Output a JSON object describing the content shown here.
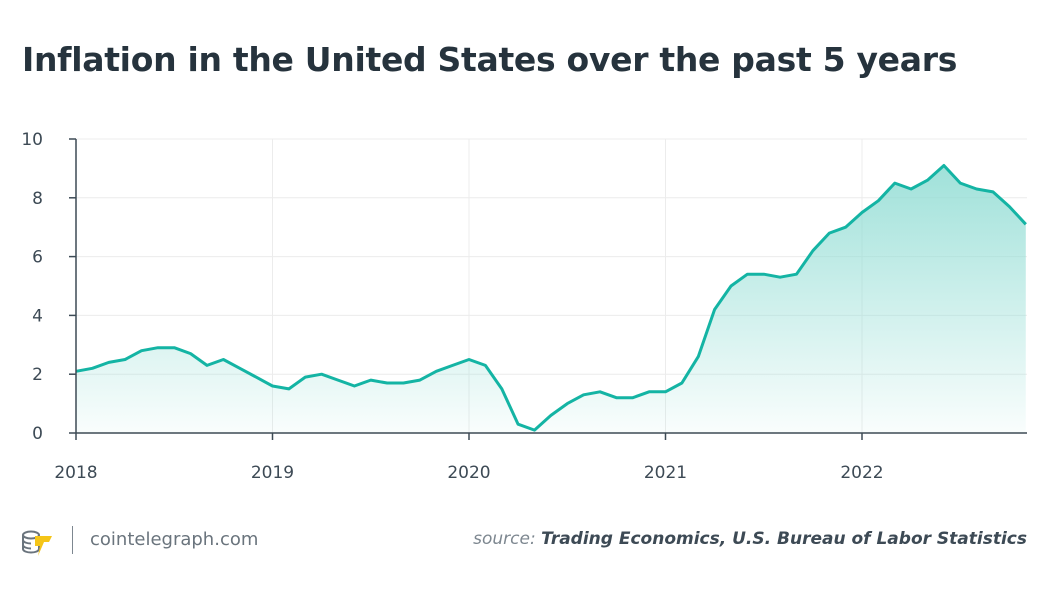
{
  "chart_data": {
    "type": "area",
    "title": "Inflation in the United States over the past 5 years",
    "xlabel": "",
    "ylabel": "",
    "x_start": "2018-01",
    "x_end": "2022-11",
    "x_frequency": "monthly",
    "x_ticks": [
      "2018",
      "2019",
      "2020",
      "2021",
      "2022"
    ],
    "y_ticks": [
      0,
      2,
      4,
      6,
      8,
      10
    ],
    "ylim": [
      0,
      10
    ],
    "grid": true,
    "values": [
      2.1,
      2.2,
      2.4,
      2.5,
      2.8,
      2.9,
      2.9,
      2.7,
      2.3,
      2.5,
      2.2,
      1.9,
      1.6,
      1.5,
      1.9,
      2.0,
      1.8,
      1.6,
      1.8,
      1.7,
      1.7,
      1.8,
      2.1,
      2.3,
      2.5,
      2.3,
      1.5,
      0.3,
      0.1,
      0.6,
      1.0,
      1.3,
      1.4,
      1.2,
      1.2,
      1.4,
      1.4,
      1.7,
      2.6,
      4.2,
      5.0,
      5.4,
      5.4,
      5.3,
      5.4,
      6.2,
      6.8,
      7.0,
      7.5,
      7.9,
      8.5,
      8.3,
      8.6,
      9.1,
      8.5,
      8.3,
      8.2,
      7.7,
      7.1
    ],
    "line_color": "#14b4a4",
    "fill_color": "#8fdcd3"
  },
  "footer": {
    "site": "cointelegraph.com",
    "source_prefix": "source:",
    "source": "Trading Economics, U.S. Bureau of Labor Statistics",
    "logo_icon": "cointelegraph-logo-icon"
  }
}
